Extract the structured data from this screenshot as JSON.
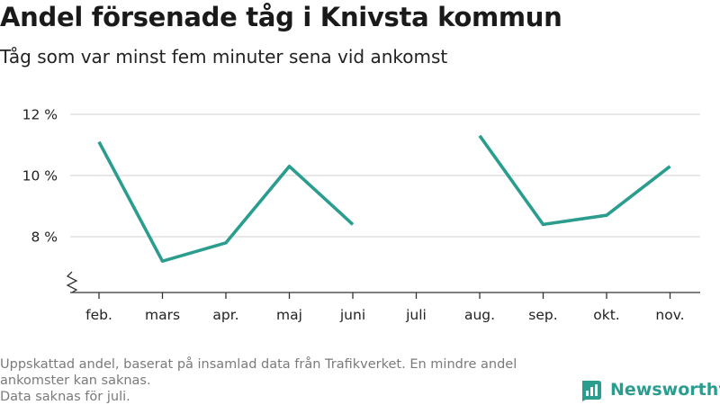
{
  "header": {
    "title": "Andel försenade tåg i Knivsta kommun",
    "subtitle": "Tåg som var minst fem minuter sena vid ankomst"
  },
  "chart_data": {
    "type": "line",
    "categories": [
      "feb.",
      "mars",
      "apr.",
      "maj",
      "juni",
      "juli",
      "aug.",
      "sep.",
      "okt.",
      "nov."
    ],
    "series": [
      {
        "values": [
          11.1,
          7.2,
          7.8,
          10.3,
          8.4,
          null,
          11.3,
          8.4,
          8.7,
          10.3
        ]
      }
    ],
    "yticks": [
      8,
      10,
      12
    ],
    "ytick_labels": [
      "8 %",
      "10 %",
      "12 %"
    ],
    "ylim": [
      6.5,
      12.5
    ],
    "axis_break": true,
    "grid": true,
    "line_color": "#2a9d8f"
  },
  "footnote": {
    "lines": [
      "Uppskattad andel, baserat på insamlad data från Trafikverket. En mindre andel",
      "ankomster kan saknas.",
      "Data saknas för juli."
    ]
  },
  "brand": {
    "name": "Newsworthy",
    "color": "#2a9d8f",
    "icon": "bar-chart-logo-icon"
  }
}
